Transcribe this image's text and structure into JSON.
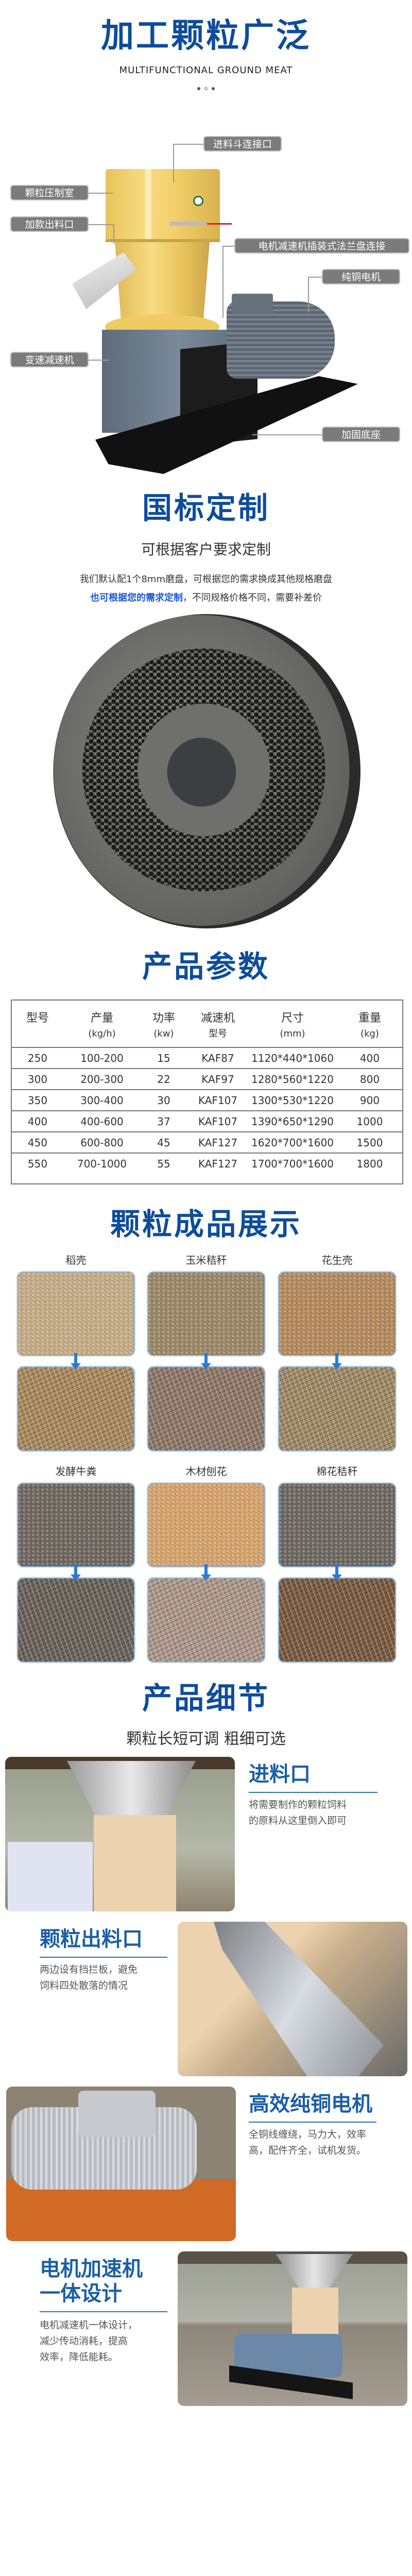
{
  "hero": {
    "title": "加工颗粒广泛",
    "subtitle_en": "MULTIFUNCTIONAL GROUND MEAT",
    "labels": {
      "hopper_port": "进料斗连接口",
      "press_chamber": "颗粒压制室",
      "outlet": "加款出料口",
      "flange": "电机减速机插装式法兰盘连接",
      "motor": "纯铜电机",
      "gearbox": "变速减速机",
      "base": "加固底座"
    }
  },
  "custom": {
    "title": "国标定制",
    "subtitle": "可根据客户要求定制",
    "line1": "我们默认配1个8mm磨盘，可根据您的需求换成其他规格磨盘",
    "line2_highlight": "也可根据您的需求定制",
    "line2_rest": "，不同规格价格不同，需要补差价"
  },
  "params": {
    "title": "产品参数",
    "headers": [
      [
        "型号",
        ""
      ],
      [
        "产量",
        "(kg/h)"
      ],
      [
        "功率",
        "(kw)"
      ],
      [
        "减速机",
        "型号"
      ],
      [
        "尺寸",
        "(mm)"
      ],
      [
        "重量",
        "(kg)"
      ]
    ],
    "rows": [
      [
        "250",
        "100-200",
        "15",
        "KAF87",
        "1120*440*1060",
        "400"
      ],
      [
        "300",
        "200-300",
        "22",
        "KAF97",
        "1280*560*1220",
        "800"
      ],
      [
        "350",
        "300-400",
        "30",
        "KAF107",
        "1300*530*1220",
        "900"
      ],
      [
        "400",
        "400-600",
        "37",
        "KAF107",
        "1390*650*1290",
        "1000"
      ],
      [
        "450",
        "600-800",
        "45",
        "KAF127",
        "1620*700*1600",
        "1500"
      ],
      [
        "550",
        "700-1000",
        "55",
        "KAF127",
        "1700*700*1600",
        "1800"
      ]
    ]
  },
  "showcase": {
    "title": "颗粒成品展示",
    "materials": [
      {
        "name": "稻壳",
        "raw_color": "#c6ad86",
        "pellet_color": "#a98a5e"
      },
      {
        "name": "玉米秸秆",
        "raw_color": "#9c8866",
        "pellet_color": "#8e7868"
      },
      {
        "name": "花生壳",
        "raw_color": "#b68a5c",
        "pellet_color": "#a08a66"
      },
      {
        "name": "发酵牛粪",
        "raw_color": "#706860",
        "pellet_color": "#6a625a"
      },
      {
        "name": "木材刨花",
        "raw_color": "#d7a46c",
        "pellet_color": "#ad978a"
      },
      {
        "name": "棉花秸秆",
        "raw_color": "#6e6862",
        "pellet_color": "#7a5a40"
      }
    ],
    "arrow_color": "#2a7bd0"
  },
  "details": {
    "title": "产品细节",
    "subtitle": "颗粒长短可调 粗细可选",
    "items": [
      {
        "heading": [
          "进料口"
        ],
        "text": [
          "将需要制作的颗粒饲料",
          "的原料从这里倒入即可"
        ]
      },
      {
        "heading": [
          "颗粒出料口"
        ],
        "text": [
          "两边设有挡拦板，避免",
          "饲料四处散落的情况"
        ]
      },
      {
        "heading": [
          "高效纯铜电机"
        ],
        "text": [
          "全铜线缠绕，马力大，效率",
          "高，配件齐全，试机发货。"
        ]
      },
      {
        "heading": [
          "电机加速机",
          "一体设计"
        ],
        "text": [
          "电机减速机一体设计，",
          "减少传动消耗，提高",
          "效率，降低能耗。"
        ]
      }
    ]
  },
  "colors": {
    "brand_blue": "#0e4c9c",
    "highlight_blue": "#1a56d6",
    "machine_yellow": "#f2cf6a",
    "machine_cream": "#ecd2ae"
  }
}
